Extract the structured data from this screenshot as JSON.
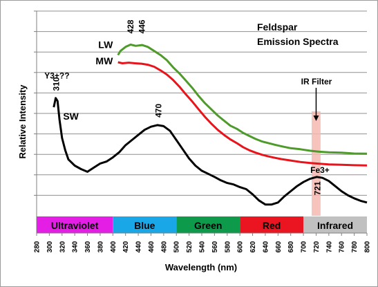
{
  "chart_data": {
    "type": "line",
    "title_lines": [
      "Feldspar",
      "Emission Spectra"
    ],
    "xlabel": "Wavelength (nm)",
    "ylabel": "Relative Intensity",
    "xlim": [
      280,
      800
    ],
    "ylim": [
      0,
      100
    ],
    "y_gridlines": [
      10,
      20,
      30,
      40,
      50,
      60,
      70,
      80,
      90,
      100
    ],
    "grid": "horizontal",
    "x_ticks": [
      280,
      300,
      320,
      340,
      360,
      380,
      400,
      420,
      440,
      460,
      480,
      500,
      520,
      540,
      560,
      580,
      600,
      620,
      640,
      660,
      680,
      700,
      720,
      740,
      760,
      780,
      800
    ],
    "series": [
      {
        "name": "LW",
        "color": "#4e9a2a",
        "points": [
          [
            408,
            78.5
          ],
          [
            412,
            80.5
          ],
          [
            420,
            82.5
          ],
          [
            428,
            83.6
          ],
          [
            436,
            83.0
          ],
          [
            446,
            83.4
          ],
          [
            455,
            82.5
          ],
          [
            465,
            80.5
          ],
          [
            475,
            78.5
          ],
          [
            485,
            76.0
          ],
          [
            495,
            72.5
          ],
          [
            505,
            69.5
          ],
          [
            515,
            66.0
          ],
          [
            525,
            62.5
          ],
          [
            535,
            58.5
          ],
          [
            545,
            55.0
          ],
          [
            555,
            52.0
          ],
          [
            565,
            49.0
          ],
          [
            575,
            46.5
          ],
          [
            585,
            44.0
          ],
          [
            595,
            42.5
          ],
          [
            605,
            40.5
          ],
          [
            615,
            39.0
          ],
          [
            625,
            37.5
          ],
          [
            635,
            36.3
          ],
          [
            645,
            35.5
          ],
          [
            655,
            34.7
          ],
          [
            665,
            34.0
          ],
          [
            680,
            33.0
          ],
          [
            695,
            32.5
          ],
          [
            710,
            31.8
          ],
          [
            725,
            31.3
          ],
          [
            740,
            31.0
          ],
          [
            760,
            30.8
          ],
          [
            780,
            30.4
          ],
          [
            800,
            30.3
          ]
        ]
      },
      {
        "name": "MW",
        "color": "#e8141b",
        "points": [
          [
            408,
            75.0
          ],
          [
            415,
            74.5
          ],
          [
            425,
            74.8
          ],
          [
            435,
            74.5
          ],
          [
            445,
            74.3
          ],
          [
            455,
            73.8
          ],
          [
            465,
            72.8
          ],
          [
            475,
            71.0
          ],
          [
            485,
            69.0
          ],
          [
            495,
            66.3
          ],
          [
            505,
            63.0
          ],
          [
            515,
            59.3
          ],
          [
            525,
            55.8
          ],
          [
            535,
            52.0
          ],
          [
            545,
            48.3
          ],
          [
            555,
            45.0
          ],
          [
            565,
            42.0
          ],
          [
            575,
            39.5
          ],
          [
            585,
            37.3
          ],
          [
            595,
            35.5
          ],
          [
            605,
            33.5
          ],
          [
            615,
            32.0
          ],
          [
            625,
            30.8
          ],
          [
            635,
            29.8
          ],
          [
            645,
            29.0
          ],
          [
            655,
            28.3
          ],
          [
            665,
            27.7
          ],
          [
            680,
            27.0
          ],
          [
            695,
            26.3
          ],
          [
            710,
            25.8
          ],
          [
            725,
            25.4
          ],
          [
            740,
            25.1
          ],
          [
            760,
            24.9
          ],
          [
            780,
            24.7
          ],
          [
            800,
            24.6
          ]
        ]
      },
      {
        "name": "SW",
        "color": "#000000",
        "points": [
          [
            307,
            53.0
          ],
          [
            310,
            57.5
          ],
          [
            313,
            56.0
          ],
          [
            316,
            47.0
          ],
          [
            320,
            38.0
          ],
          [
            325,
            32.0
          ],
          [
            330,
            27.5
          ],
          [
            340,
            24.5
          ],
          [
            350,
            22.8
          ],
          [
            360,
            21.5
          ],
          [
            370,
            23.5
          ],
          [
            380,
            25.5
          ],
          [
            390,
            26.5
          ],
          [
            400,
            28.5
          ],
          [
            410,
            31.0
          ],
          [
            420,
            34.5
          ],
          [
            430,
            37.0
          ],
          [
            440,
            39.5
          ],
          [
            450,
            42.0
          ],
          [
            460,
            43.5
          ],
          [
            470,
            44.3
          ],
          [
            480,
            43.8
          ],
          [
            490,
            41.5
          ],
          [
            500,
            37.0
          ],
          [
            510,
            32.5
          ],
          [
            520,
            28.0
          ],
          [
            530,
            24.5
          ],
          [
            540,
            22.0
          ],
          [
            550,
            20.5
          ],
          [
            560,
            19.0
          ],
          [
            570,
            17.3
          ],
          [
            580,
            16.0
          ],
          [
            590,
            15.3
          ],
          [
            600,
            14.0
          ],
          [
            610,
            13.0
          ],
          [
            620,
            10.5
          ],
          [
            630,
            7.5
          ],
          [
            640,
            5.5
          ],
          [
            650,
            5.5
          ],
          [
            660,
            6.5
          ],
          [
            670,
            9.5
          ],
          [
            680,
            12.0
          ],
          [
            690,
            14.5
          ],
          [
            700,
            16.5
          ],
          [
            710,
            18.0
          ],
          [
            721,
            19.0
          ],
          [
            730,
            18.5
          ],
          [
            740,
            17.0
          ],
          [
            750,
            14.5
          ],
          [
            760,
            12.0
          ],
          [
            770,
            10.0
          ],
          [
            780,
            8.5
          ],
          [
            790,
            7.3
          ],
          [
            800,
            6.5
          ]
        ]
      }
    ],
    "series_labels": [
      {
        "series": "LW",
        "text": "LW",
        "x": 400,
        "y": 82
      },
      {
        "series": "MW",
        "text": "MW",
        "x": 400,
        "y": 74
      },
      {
        "series": "SW",
        "text": "SW",
        "x": 334,
        "y": 47
      }
    ],
    "peak_labels": [
      {
        "text": "428",
        "x": 428,
        "y": 89,
        "rotate": true
      },
      {
        "text": "446",
        "x": 446,
        "y": 89,
        "rotate": true
      },
      {
        "text": "470",
        "x": 472,
        "y": 48,
        "rotate": true
      },
      {
        "text": "310",
        "x": 311,
        "y": 61,
        "rotate": true
      },
      {
        "text": "721",
        "x": 722,
        "y": 10,
        "rotate": true
      },
      {
        "text": "Y3+??",
        "x": 312,
        "y": 67,
        "rotate": false
      },
      {
        "text": "Fe3+",
        "x": 726,
        "y": 21,
        "rotate": false
      }
    ],
    "ir_filter": {
      "label": "IR Filter",
      "x_range": [
        713,
        727
      ],
      "color": "#f4b8b2"
    },
    "bands": [
      {
        "label": "Ultraviolet",
        "from": 280,
        "to": 400,
        "color": "#e51ee5",
        "text_color": "#000000"
      },
      {
        "label": "Blue",
        "from": 400,
        "to": 500,
        "color": "#1aa7e8",
        "text_color": "#000000"
      },
      {
        "label": "Green",
        "from": 500,
        "to": 600,
        "color": "#0d9a4a",
        "text_color": "#000000"
      },
      {
        "label": "Red",
        "from": 600,
        "to": 700,
        "color": "#ea1520",
        "text_color": "#000000"
      },
      {
        "label": "Infrared",
        "from": 700,
        "to": 800,
        "color": "#c0c0c0",
        "text_color": "#000000"
      }
    ]
  }
}
